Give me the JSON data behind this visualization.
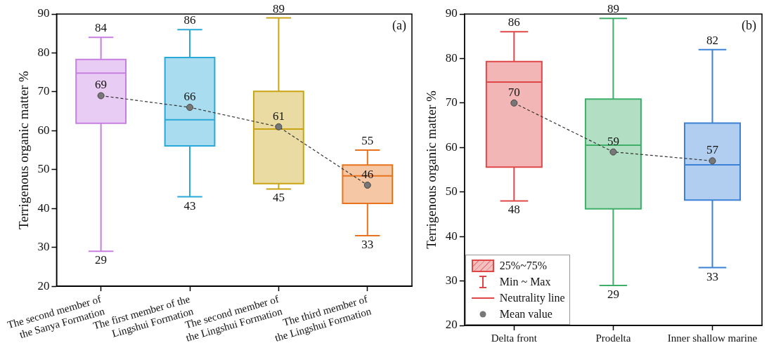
{
  "chart_data": [
    {
      "type": "box",
      "ylabel": "Terrigenous organic matter %",
      "categories": [
        "The second member of\nthe Sanya Formation",
        "The first member of the\nLingshui Formation",
        "The second member of\nthe Lingshui Formation",
        "The third member of\nthe Lingshui Formation"
      ],
      "ylim": [
        20,
        90
      ],
      "yticks": [
        20,
        30,
        40,
        50,
        60,
        70,
        80,
        90
      ],
      "data_labels": true,
      "annotations": [
        "(a)",
        {
          "text": "84",
          "x": "The second member of\nthe Sanya Formation",
          "y": 84
        },
        {
          "text": "29",
          "x": "The second member of\nthe Sanya Formation",
          "y": 29
        },
        {
          "text": "86",
          "x": "The first member of the\nLingshui Formation",
          "y": 86
        },
        {
          "text": "43",
          "x": "The first member of the\nLingshui Formation",
          "y": 43
        },
        {
          "text": "89",
          "x": "The second member of\nthe Lingshui Formation",
          "y": 89
        },
        {
          "text": "45",
          "x": "The second member of\nthe Lingshui Formation",
          "y": 45
        },
        {
          "text": "55",
          "x": "The third member of\nthe Lingshui Formation",
          "y": 55
        },
        {
          "text": "33",
          "x": "The third member of\nthe Lingshui Formation",
          "y": 33
        }
      ],
      "series": [
        {
          "type": "box",
          "colors": [
            "#c77fe0",
            "#2aa8d8",
            "#c9a415",
            "#e8731c"
          ],
          "boxes": [
            {
              "low": 29,
              "q1": 61.9,
              "median": 74.8,
              "q3": 78.3,
              "high": 84
            },
            {
              "low": 43,
              "q1": 56.1,
              "median": 62.8,
              "q3": 78.8,
              "high": 86
            },
            {
              "low": 45,
              "q1": 46.4,
              "median": 60.4,
              "q3": 70.1,
              "high": 89
            },
            {
              "low": 33,
              "q1": 41.3,
              "median": 48.4,
              "q3": 51.2,
              "high": 55
            }
          ]
        },
        {
          "type": "line",
          "color": "#777777",
          "values": [
            69,
            66,
            61,
            46
          ],
          "line_style": "dashed",
          "marker": "circle"
        }
      ]
    },
    {
      "type": "box",
      "ylabel": "Terrigenous organic matter %",
      "categories": [
        "Delta front",
        "Prodelta",
        "Inner shallow marine"
      ],
      "ylim": [
        20,
        90
      ],
      "yticks": [
        20,
        30,
        40,
        50,
        60,
        70,
        80,
        90
      ],
      "data_labels": true,
      "legend": "bottom left",
      "annotations": [
        "(b)",
        "Min ~ Max",
        "Neutrality line",
        {
          "text": "86",
          "x": "Delta front",
          "y": 86
        },
        {
          "text": "48",
          "x": "Delta front",
          "y": 48
        },
        {
          "text": "89",
          "x": "Prodelta",
          "y": 89
        },
        {
          "text": "29",
          "x": "Prodelta",
          "y": 29
        },
        {
          "text": "82",
          "x": "Inner shallow marine",
          "y": 82
        },
        {
          "text": "33",
          "x": "Inner shallow marine",
          "y": 33
        }
      ],
      "series": [
        {
          "type": "box",
          "name": "25%~75%",
          "colors": [
            "#e04848",
            "#3fae68",
            "#3b82d6"
          ],
          "boxes": [
            {
              "low": 48,
              "q1": 55.6,
              "median": 74.7,
              "q3": 79.3,
              "high": 86
            },
            {
              "low": 29,
              "q1": 46.2,
              "median": 60.5,
              "q3": 70.9,
              "high": 89
            },
            {
              "low": 33,
              "q1": 48.2,
              "median": 56.1,
              "q3": 65.5,
              "high": 82
            }
          ]
        },
        {
          "type": "line",
          "name": "Mean value",
          "color": "#777777",
          "values": [
            70,
            59,
            57
          ],
          "line_style": "dashed",
          "marker": "circle"
        }
      ]
    }
  ]
}
